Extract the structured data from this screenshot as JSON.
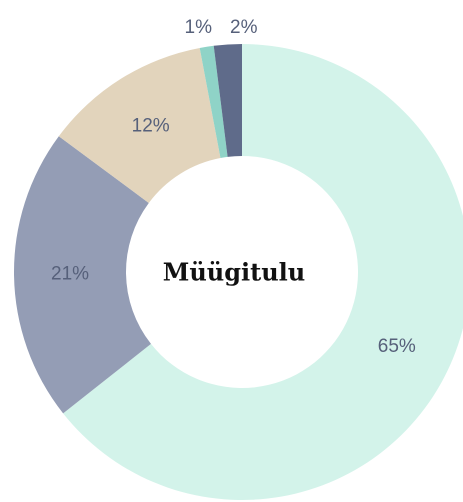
{
  "chart_data": {
    "type": "pie",
    "title": "Müügitulu",
    "categories": [
      null,
      null,
      null,
      null,
      null
    ],
    "values": [
      65,
      21,
      12,
      1,
      2
    ],
    "value_labels": [
      "65%",
      "21%",
      "12%",
      "1%",
      "2%"
    ],
    "colors": [
      "#d3f3ea",
      "#949db5",
      "#e2d4bc",
      "#8fd3c7",
      "#5f6b8a"
    ],
    "donut": true
  }
}
